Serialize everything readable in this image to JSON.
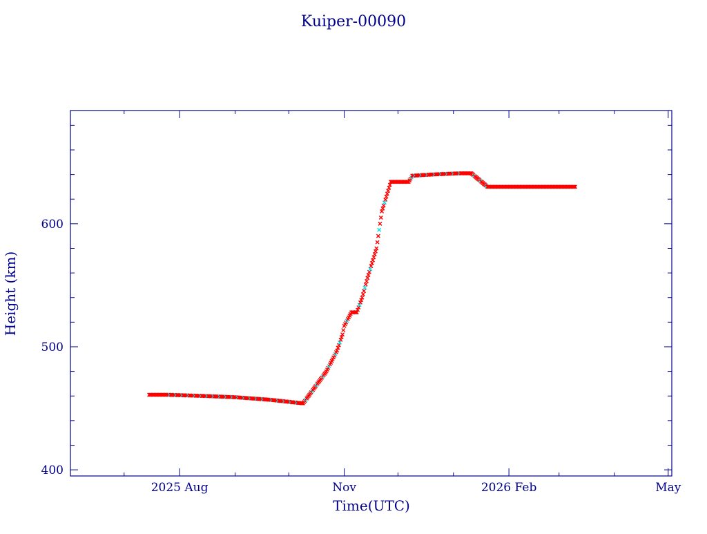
{
  "chart_data": {
    "type": "scatter",
    "title": "Kuiper-00090",
    "xlabel": "Time(UTC)",
    "ylabel": "Height (km)",
    "x_tick_labels": [
      "2025 Aug",
      "Nov",
      "2026 Feb",
      "May"
    ],
    "y_tick_labels": [
      "400",
      "500",
      "600"
    ],
    "xlim": [
      "2025-06-01",
      "2026-05-03"
    ],
    "ylim": [
      395,
      692
    ],
    "grid": false,
    "legend": "none",
    "colors": {
      "axes": "#00008b",
      "text": "#00008b",
      "series": "#ff0000",
      "series_alt": "#00e5ee"
    },
    "series": [
      {
        "marker": "x",
        "color": "#ff0000",
        "x": [
          "2025-07-15",
          "2025-07-25",
          "2025-08-15",
          "2025-09-01",
          "2025-09-20",
          "2025-10-09",
          "2025-10-15",
          "2025-10-22",
          "2025-10-28",
          "2025-10-31",
          "2025-11-01",
          "2025-11-05",
          "2025-11-06",
          "2025-11-08",
          "2025-11-11",
          "2025-11-14",
          "2025-11-19",
          "2025-11-22",
          "2025-11-27",
          "2025-11-29",
          "2025-12-07",
          "2025-12-09",
          "2025-12-20",
          "2026-01-05",
          "2026-01-11",
          "2026-01-20",
          "2026-02-01",
          "2026-02-20",
          "2026-03-10"
        ],
        "y": [
          461,
          461,
          460,
          459,
          457,
          454,
          466,
          480,
          497,
          510,
          517,
          528,
          528,
          528,
          540,
          556,
          580,
          610,
          634,
          634,
          634,
          639,
          640,
          641,
          641,
          630,
          630,
          630,
          630
        ]
      }
    ]
  }
}
